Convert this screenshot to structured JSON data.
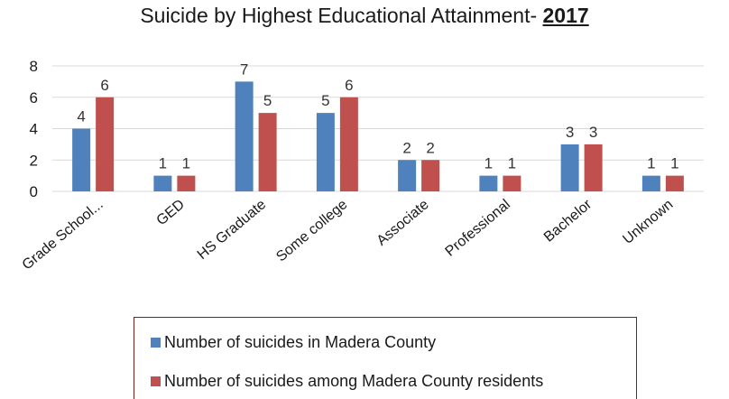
{
  "chart_data": {
    "type": "bar",
    "title": "Suicide by Highest Educational Attainment- ",
    "title_year": "2017",
    "xlabel": "",
    "ylabel": "",
    "ylim": [
      0,
      8
    ],
    "y_ticks": [
      "0",
      "2",
      "4",
      "6",
      "8"
    ],
    "grid": true,
    "legend_position": "bottom",
    "categories": [
      "Grade School...",
      "GED",
      "HS Graduate",
      "Some college",
      "Associate",
      "Professional",
      "Bachelor",
      "Unknown"
    ],
    "series": [
      {
        "name": "Number of suicides in Madera County",
        "color": "#4f81bd",
        "values": [
          4,
          1,
          7,
          5,
          2,
          1,
          3,
          1
        ]
      },
      {
        "name": "Number of suicides among Madera County residents",
        "color": "#c0504d",
        "values": [
          6,
          1,
          5,
          6,
          2,
          1,
          3,
          1
        ]
      }
    ]
  }
}
